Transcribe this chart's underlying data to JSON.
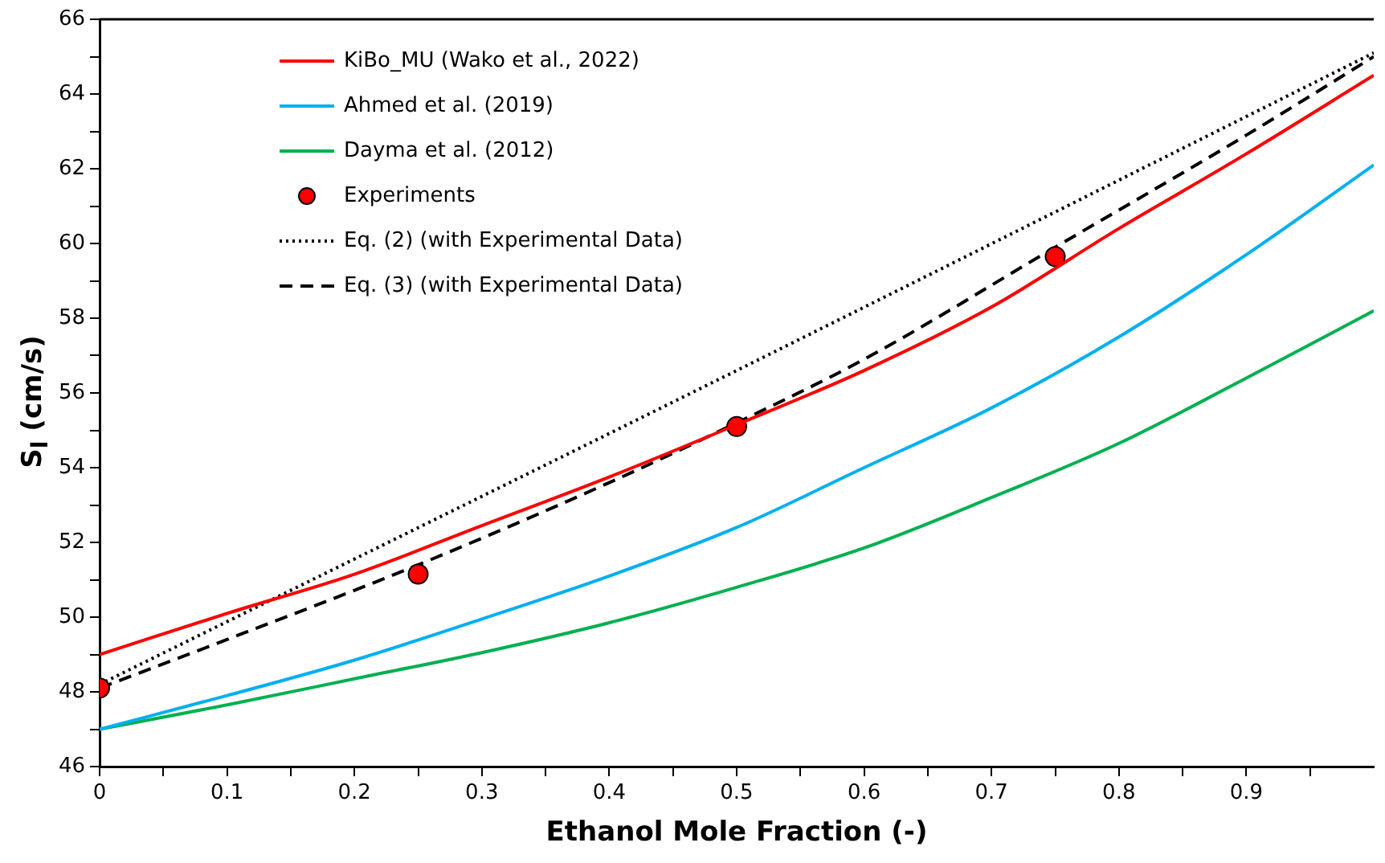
{
  "chart_data": {
    "type": "line",
    "xlabel": "Ethanol Mole Fraction (-)",
    "ylabel": "S$_{l}$ (cm/s)",
    "xlim": [
      0,
      1
    ],
    "ylim": [
      46,
      66
    ],
    "xticks": [
      0,
      {
        "value": 0.05,
        "label": null
      },
      0.1,
      {
        "value": 0.15,
        "label": null
      },
      0.2,
      {
        "value": 0.25,
        "label": null
      },
      0.3,
      {
        "value": 0.35,
        "label": null
      },
      0.4,
      {
        "value": 0.45,
        "label": null
      },
      0.5,
      {
        "value": 0.55,
        "label": null
      },
      0.6,
      {
        "value": 0.65,
        "label": null
      },
      0.7,
      {
        "value": 0.75,
        "label": null
      },
      0.8,
      {
        "value": 0.85,
        "label": null
      },
      0.9,
      {
        "value": 0.95,
        "label": null
      }
    ],
    "yticks": [
      46,
      {
        "value": 47,
        "label": null
      },
      48,
      {
        "value": 49,
        "label": null
      },
      50,
      {
        "value": 51,
        "label": null
      },
      52,
      {
        "value": 53,
        "label": null
      },
      54,
      {
        "value": 55,
        "label": null
      },
      56,
      {
        "value": 57,
        "label": null
      },
      58,
      {
        "value": 59,
        "label": null
      },
      60,
      {
        "value": 61,
        "label": null
      },
      62,
      {
        "value": 63,
        "label": null
      },
      64,
      {
        "value": 65,
        "label": null
      },
      66
    ],
    "grid": false,
    "legend": "top left",
    "series": [
      {
        "name": "KiBo_MU (Wako et al., 2022)",
        "color": "#ff0000",
        "marker": "none",
        "line_style": "solid",
        "x": [
          0,
          0.1,
          0.2,
          0.3,
          0.4,
          0.5,
          0.6,
          0.7,
          0.8,
          0.9,
          1.0
        ],
        "values": [
          49,
          50.1,
          51.15,
          52.45,
          53.75,
          55.15,
          56.6,
          58.3,
          60.4,
          62.4,
          64.5
        ]
      },
      {
        "name": "Ahmed et al. (2019)",
        "color": "#00b0f0",
        "marker": "none",
        "line_style": "solid",
        "x": [
          0,
          0.1,
          0.2,
          0.3,
          0.4,
          0.5,
          0.6,
          0.7,
          0.8,
          0.9,
          1.0
        ],
        "values": [
          47,
          47.9,
          48.85,
          49.95,
          51.1,
          52.4,
          54.0,
          55.6,
          57.5,
          59.7,
          62.1
        ]
      },
      {
        "name": "Dayma et al. (2012)",
        "color": "#00b050",
        "marker": "none",
        "line_style": "solid",
        "x": [
          0,
          0.1,
          0.2,
          0.3,
          0.4,
          0.5,
          0.6,
          0.7,
          0.8,
          0.9,
          1.0
        ],
        "values": [
          47,
          47.65,
          48.35,
          49.05,
          49.85,
          50.8,
          51.85,
          53.2,
          54.65,
          56.4,
          58.2
        ]
      },
      {
        "name": "Experiments",
        "type": "scatter",
        "color": "#ff0000",
        "marker": "circle",
        "x": [
          0,
          0.25,
          0.5,
          0.75
        ],
        "values": [
          48.1,
          51.15,
          55.1,
          59.65
        ]
      },
      {
        "name": "Eq. (2) (with Experimental Data)",
        "color": "#000000",
        "marker": "none",
        "line_style": "dotted",
        "x": [
          0,
          0.5,
          1.0
        ],
        "values": [
          48.2,
          56.6,
          65.1
        ]
      },
      {
        "name": "Eq. (3) (with Experimental Data)",
        "color": "#000000",
        "marker": "none",
        "line_style": "dashed",
        "x": [
          0,
          0.1,
          0.25,
          0.4,
          0.5,
          0.6,
          0.75,
          0.9,
          1.0
        ],
        "values": [
          48.1,
          49.4,
          51.4,
          53.6,
          55.2,
          56.9,
          59.9,
          62.9,
          65.0
        ]
      }
    ]
  }
}
